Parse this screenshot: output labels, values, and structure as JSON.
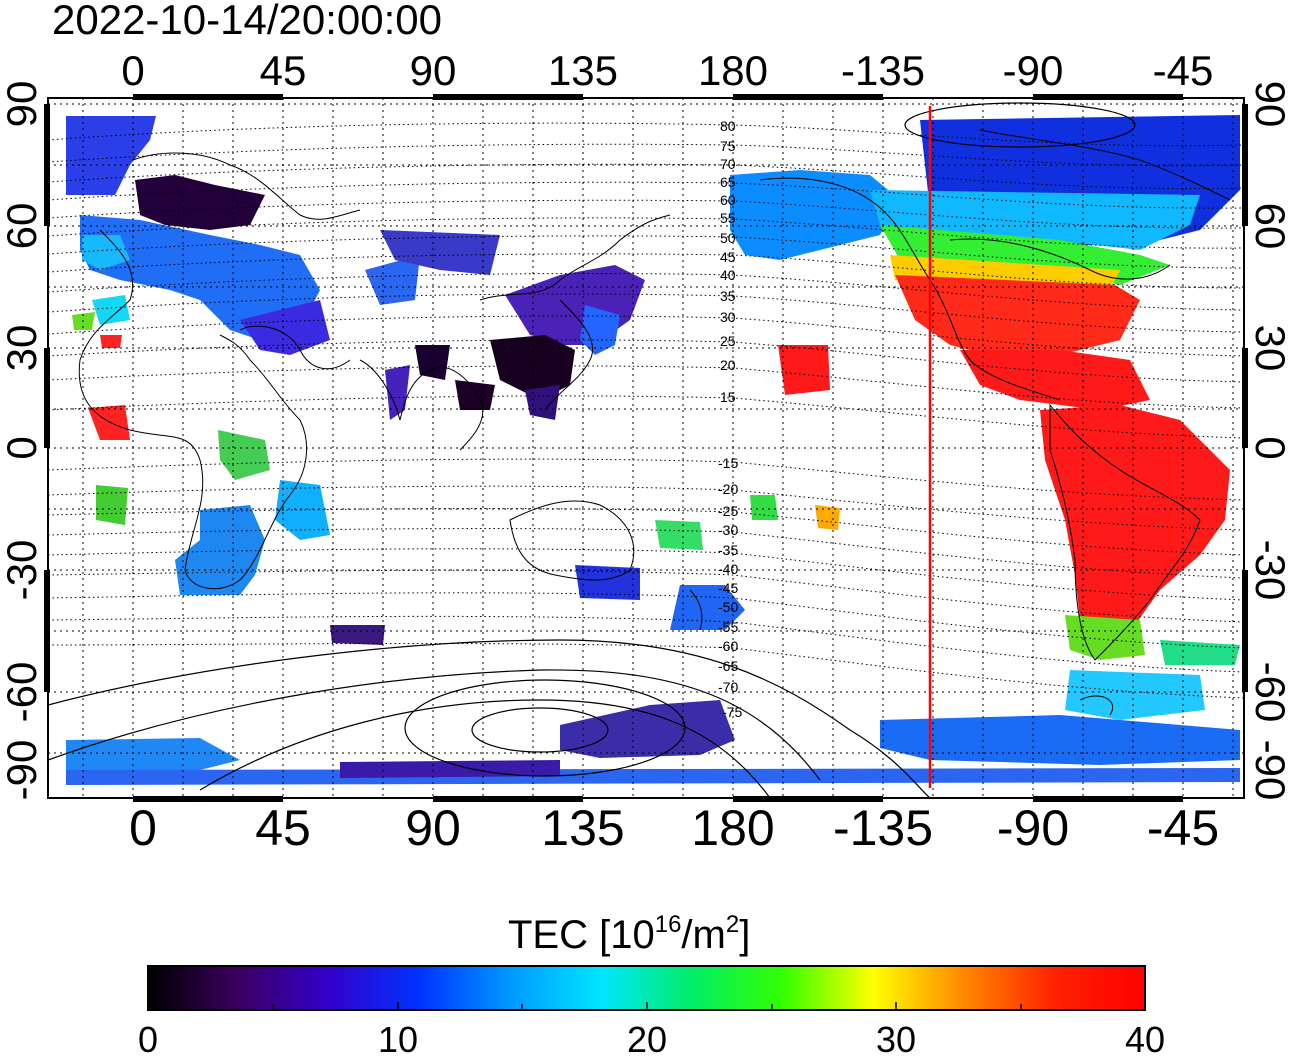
{
  "title": "2022-10-14/20:00:00",
  "axes": {
    "top_lon_labels": [
      "0",
      "45",
      "90",
      "135",
      "180",
      "-135",
      "-90",
      "-45"
    ],
    "bottom_lon_labels": [
      "0",
      "45",
      "90",
      "135",
      "180",
      "-135",
      "-90",
      "-45"
    ],
    "left_lat_labels": [
      "90",
      "60",
      "30",
      "0",
      "-30",
      "-60",
      "-90"
    ],
    "right_lat_labels": [
      "90",
      "60",
      "30",
      "0",
      "-30",
      "-60",
      "-90"
    ]
  },
  "contours": {
    "north_labels": [
      "80",
      "75",
      "70",
      "65",
      "60",
      "55",
      "50",
      "45",
      "40",
      "35",
      "30",
      "25",
      "20",
      "15"
    ],
    "south_labels": [
      "-15",
      "-20",
      "-25",
      "-30",
      "-35",
      "-40",
      "-45",
      "-50",
      "-55",
      "-60",
      "-65",
      "-70",
      "-75"
    ]
  },
  "colorbar": {
    "title_main": "TEC  [10",
    "title_sup": "16",
    "title_mid": "/m",
    "title_sup2": "2",
    "title_end": "]",
    "tick_labels": [
      "0",
      "10",
      "20",
      "30",
      "40"
    ],
    "min": 0,
    "max": 40,
    "stops": [
      "#000000",
      "#3a0060",
      "#3300cc",
      "#0033ff",
      "#0099ff",
      "#00e5ff",
      "#00ee66",
      "#33ff00",
      "#ffff00",
      "#ff8800",
      "#ff2200",
      "#ff0000"
    ]
  },
  "terminator_color": "#ff0000",
  "chart_data": {
    "type": "heatmap",
    "title": "2022-10-14/20:00:00",
    "variable": "TEC  [10^16/m^2]",
    "lon_range": [
      -20,
      340
    ],
    "lat_range": [
      -90,
      90
    ],
    "color_range": [
      0,
      40
    ],
    "grid": true,
    "regions": [
      {
        "lon": [
          -90,
          -60
        ],
        "lat": [
          20,
          45
        ],
        "value": 38
      },
      {
        "lon": [
          -120,
          -90
        ],
        "lat": [
          30,
          48
        ],
        "value": 37
      },
      {
        "lon": [
          -80,
          -40
        ],
        "lat": [
          -50,
          20
        ],
        "value": 38
      },
      {
        "lon": [
          -130,
          -60
        ],
        "lat": [
          48,
          60
        ],
        "value": 24
      },
      {
        "lon": [
          -130,
          -50
        ],
        "lat": [
          62,
          85
        ],
        "value": 11
      },
      {
        "lon": [
          100,
          145
        ],
        "lat": [
          20,
          45
        ],
        "value": 3
      },
      {
        "lon": [
          0,
          60
        ],
        "lat": [
          35,
          65
        ],
        "value": 11
      },
      {
        "lon": [
          10,
          40
        ],
        "lat": [
          60,
          75
        ],
        "value": 1
      },
      {
        "lon": [
          10,
          40
        ],
        "lat": [
          -35,
          -20
        ],
        "value": 13
      },
      {
        "lon": [
          -75,
          -60
        ],
        "lat": [
          -60,
          -50
        ],
        "value": 25
      },
      {
        "lon": [
          -90,
          -50
        ],
        "lat": [
          -75,
          -60
        ],
        "value": 15
      },
      {
        "lon": [
          -20,
          340
        ],
        "lat": [
          -90,
          -75
        ],
        "value": 9
      }
    ]
  }
}
